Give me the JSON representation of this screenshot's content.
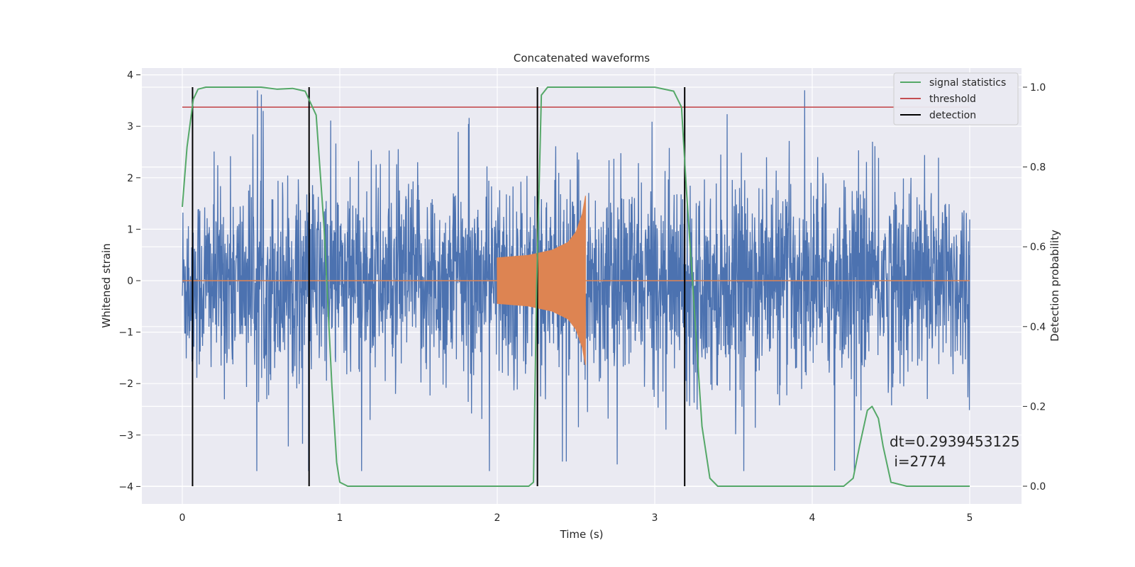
{
  "chart_data": {
    "type": "line",
    "title": "Concatenated waveforms",
    "xlabel": "Time (s)",
    "ylabel": "Whitened strain",
    "y2label": "Detection probability",
    "xlim": [
      -0.25,
      5.35
    ],
    "ylim": [
      -4.35,
      4.1
    ],
    "y2lim": [
      -0.047,
      1.036
    ],
    "xticks": [
      0,
      1,
      2,
      3,
      4,
      5
    ],
    "yticks": [
      4,
      3,
      2,
      1,
      0,
      -1,
      -2,
      -3,
      -4
    ],
    "y2ticks": [
      1.0,
      0.8,
      0.6,
      0.4,
      0.2,
      0.0
    ],
    "y2tick_labels": [
      "1.0",
      "0.8",
      "0.6",
      "0.4",
      "0.2",
      "0.0"
    ],
    "grid": true,
    "legend_position": "top-right",
    "legend": [
      {
        "label": "signal statistics",
        "color": "#55a868"
      },
      {
        "label": "threshold",
        "color": "#c44e52"
      },
      {
        "label": "detection",
        "color": "#000000"
      }
    ],
    "series": [
      {
        "axis": "left",
        "color": "#4c72b0",
        "x_range": [
          0,
          5
        ],
        "amplitude_envelope": 3.7,
        "kind": "noise"
      },
      {
        "axis": "left",
        "color": "#dd8452",
        "kind": "chirp",
        "x_range": [
          2.0,
          2.56
        ],
        "envelope": [
          [
            2.0,
            0.45
          ],
          [
            2.2,
            0.5
          ],
          [
            2.35,
            0.6
          ],
          [
            2.45,
            0.75
          ],
          [
            2.5,
            0.95
          ],
          [
            2.54,
            1.3
          ],
          [
            2.56,
            1.65
          ]
        ],
        "baseline": [
          [
            0,
            0
          ],
          [
            5,
            0
          ]
        ]
      },
      {
        "axis": "right",
        "color": "#55a868",
        "name": "signal statistics",
        "x": [
          0,
          0.03,
          0.07,
          0.1,
          0.15,
          0.3,
          0.5,
          0.6,
          0.7,
          0.78,
          0.85,
          0.9,
          0.95,
          0.98,
          1.0,
          1.05,
          1.5,
          2.0,
          2.2,
          2.23,
          2.25,
          2.28,
          2.32,
          2.5,
          3.0,
          3.12,
          3.17,
          3.2,
          3.25,
          3.3,
          3.35,
          3.4,
          4.0,
          4.2,
          4.26,
          4.3,
          4.35,
          4.38,
          4.42,
          4.45,
          4.5,
          4.6,
          5.0
        ],
        "y": [
          0.7,
          0.85,
          0.97,
          0.995,
          1.0,
          1.0,
          1.0,
          0.995,
          0.997,
          0.99,
          0.93,
          0.65,
          0.25,
          0.06,
          0.01,
          0.0,
          0.0,
          0.0,
          0.0,
          0.01,
          0.5,
          0.98,
          1.0,
          1.0,
          1.0,
          0.99,
          0.95,
          0.75,
          0.45,
          0.15,
          0.02,
          0.0,
          0.0,
          0.0,
          0.02,
          0.1,
          0.19,
          0.2,
          0.17,
          0.1,
          0.01,
          0.0,
          0.0
        ]
      },
      {
        "axis": "right",
        "color": "#c44e52",
        "name": "threshold",
        "x": [
          0,
          5
        ],
        "y": [
          0.95,
          0.95
        ]
      },
      {
        "axis": "right",
        "color": "#000000",
        "name": "detection",
        "vlines_x": [
          0.065,
          0.805,
          2.255,
          3.19
        ],
        "y_range": [
          0.0,
          1.0
        ]
      }
    ],
    "annotation": {
      "line1": "dt=0.2939453125",
      "line2": " i=2774",
      "x": 4.5,
      "y": 0.11
    }
  }
}
